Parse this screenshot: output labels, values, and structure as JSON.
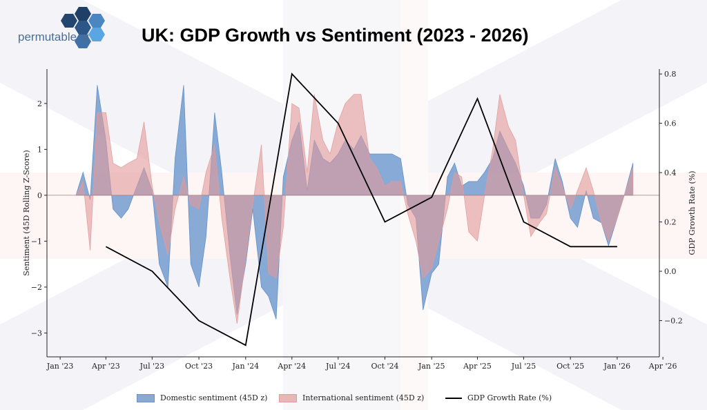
{
  "title": "UK: GDP Growth vs Sentiment (2023 - 2026)",
  "logo": {
    "text": "permutable.ai"
  },
  "colors": {
    "domestic": "#5b8cc8",
    "international": "#e39a9a",
    "gdp": "#000000"
  },
  "chart_data": {
    "type": "area",
    "title": "UK: GDP Growth vs Sentiment (2023 - 2026)",
    "ylabel": "Sentiment (45D Rolling Z-Score)",
    "y2label": "GDP Growth Rate (%)",
    "xlim": [
      "2022-12-06",
      "2026-03-25"
    ],
    "ylim": [
      -3.52,
      2.75
    ],
    "y2lim": [
      -0.347,
      0.82
    ],
    "grid": false,
    "legend": "bottom-center",
    "xticks": [
      {
        "date": "2023-01-01",
        "label": "Jan '23"
      },
      {
        "date": "2023-04-01",
        "label": "Apr '23"
      },
      {
        "date": "2023-07-01",
        "label": "Jul '23"
      },
      {
        "date": "2023-10-01",
        "label": "Oct '23"
      },
      {
        "date": "2024-01-01",
        "label": "Jan '24"
      },
      {
        "date": "2024-04-01",
        "label": "Apr '24"
      },
      {
        "date": "2024-07-01",
        "label": "Jul '24"
      },
      {
        "date": "2024-10-01",
        "label": "Oct '24"
      },
      {
        "date": "2025-01-01",
        "label": "Jan '25"
      },
      {
        "date": "2025-04-01",
        "label": "Apr '25"
      },
      {
        "date": "2025-07-01",
        "label": "Jul '25"
      },
      {
        "date": "2025-10-01",
        "label": "Oct '25"
      },
      {
        "date": "2026-01-01",
        "label": "Jan '26"
      },
      {
        "date": "2026-04-01",
        "label": "Apr '26"
      }
    ],
    "yticks": [
      {
        "v": -3,
        "label": "−3"
      },
      {
        "v": -2,
        "label": "−2"
      },
      {
        "v": -1,
        "label": "−1"
      },
      {
        "v": 0,
        "label": "0"
      },
      {
        "v": 1,
        "label": "1"
      },
      {
        "v": 2,
        "label": "2"
      }
    ],
    "y2ticks": [
      {
        "v": -0.2,
        "label": "−0.2"
      },
      {
        "v": 0.0,
        "label": "0.0"
      },
      {
        "v": 0.2,
        "label": "0.2"
      },
      {
        "v": 0.4,
        "label": "0.4"
      },
      {
        "v": 0.6,
        "label": "0.6"
      },
      {
        "v": 0.8,
        "label": "0.8"
      }
    ],
    "x": [
      "2023-02-01",
      "2023-02-15",
      "2023-03-01",
      "2023-03-15",
      "2023-04-01",
      "2023-04-15",
      "2023-05-01",
      "2023-05-15",
      "2023-06-01",
      "2023-06-15",
      "2023-07-01",
      "2023-07-15",
      "2023-08-01",
      "2023-08-15",
      "2023-09-01",
      "2023-09-15",
      "2023-10-01",
      "2023-10-15",
      "2023-11-01",
      "2023-11-15",
      "2023-12-01",
      "2023-12-15",
      "2024-01-01",
      "2024-01-15",
      "2024-02-01",
      "2024-02-15",
      "2024-03-01",
      "2024-03-15",
      "2024-04-01",
      "2024-04-15",
      "2024-05-01",
      "2024-05-15",
      "2024-06-01",
      "2024-06-15",
      "2024-07-01",
      "2024-07-15",
      "2024-08-01",
      "2024-08-15",
      "2024-09-01",
      "2024-09-15",
      "2024-10-01",
      "2024-10-15",
      "2024-11-01",
      "2024-11-15",
      "2024-12-01",
      "2024-12-15",
      "2025-01-01",
      "2025-01-15",
      "2025-02-01",
      "2025-02-15",
      "2025-03-01",
      "2025-03-15",
      "2025-04-01",
      "2025-04-15",
      "2025-05-01",
      "2025-05-15",
      "2025-06-01",
      "2025-06-15",
      "2025-07-01",
      "2025-07-15",
      "2025-08-01",
      "2025-08-15",
      "2025-09-01",
      "2025-09-15",
      "2025-10-01",
      "2025-10-15",
      "2025-11-01",
      "2025-11-15",
      "2025-12-01",
      "2025-12-15",
      "2026-01-01",
      "2026-01-15",
      "2026-02-01"
    ],
    "series": [
      {
        "name": "Domestic sentiment (45D z)",
        "axis": "left",
        "values": [
          0,
          0.5,
          -0.1,
          2.4,
          1.2,
          -0.3,
          -0.5,
          -0.3,
          0.2,
          0.6,
          0.1,
          -1.5,
          -2.0,
          0.8,
          2.4,
          -1.5,
          -2.0,
          -0.9,
          1.8,
          0.5,
          -1.3,
          -2.6,
          -1.5,
          -0.3,
          -2.0,
          -2.2,
          -2.7,
          0.4,
          1.2,
          1.6,
          0.1,
          1.2,
          0.8,
          0.7,
          0.9,
          1.2,
          1.0,
          1.3,
          0.9,
          0.9,
          0.9,
          0.9,
          0.8,
          -0.2,
          -0.5,
          -2.5,
          -1.7,
          -1.5,
          0.4,
          0.7,
          0.2,
          0.3,
          0.3,
          0.5,
          0.8,
          1.4,
          1.0,
          0.7,
          0.2,
          -0.5,
          -0.5,
          -0.2,
          0.8,
          0.3,
          -0.5,
          -0.7,
          0.1,
          -0.5,
          -0.6,
          -1.1,
          -0.5,
          0.0,
          0.7
        ]
      },
      {
        "name": "International sentiment (45D z)",
        "axis": "left",
        "values": [
          0,
          0.3,
          -1.2,
          1.8,
          1.8,
          0.7,
          0.6,
          0.7,
          0.8,
          1.6,
          0.2,
          -0.6,
          -1.3,
          -0.3,
          0.4,
          -0.2,
          -0.3,
          0.5,
          1.1,
          -0.5,
          -1.8,
          -2.8,
          -1.4,
          -0.2,
          1.1,
          -1.7,
          -1.8,
          -0.7,
          2.0,
          1.9,
          0.5,
          2.2,
          1.2,
          0.9,
          1.6,
          2.0,
          2.2,
          2.2,
          0.8,
          0.6,
          0.2,
          0.3,
          0.3,
          -0.4,
          -1.0,
          -1.8,
          -1.6,
          -1.0,
          -0.3,
          0.5,
          0.4,
          -0.8,
          -1.0,
          0.0,
          1.0,
          2.2,
          1.5,
          1.2,
          0.0,
          -0.9,
          -0.6,
          -0.4,
          0.6,
          0.2,
          -0.3,
          0.1,
          0.6,
          0.1,
          -0.6,
          -1.0,
          -0.5,
          0.0,
          0.6
        ]
      },
      {
        "name": "GDP Growth Rate (%)",
        "axis": "right",
        "type": "line",
        "x": [
          "2023-04-01",
          "2023-07-01",
          "2023-10-01",
          "2024-01-01",
          "2024-04-01",
          "2024-07-01",
          "2024-10-01",
          "2025-01-01",
          "2025-04-01",
          "2025-07-01",
          "2025-10-01",
          "2026-01-01"
        ],
        "values": [
          0.1,
          0.0,
          -0.2,
          -0.3,
          0.8,
          0.6,
          0.2,
          0.3,
          0.7,
          0.2,
          0.1,
          0.1
        ]
      }
    ]
  }
}
